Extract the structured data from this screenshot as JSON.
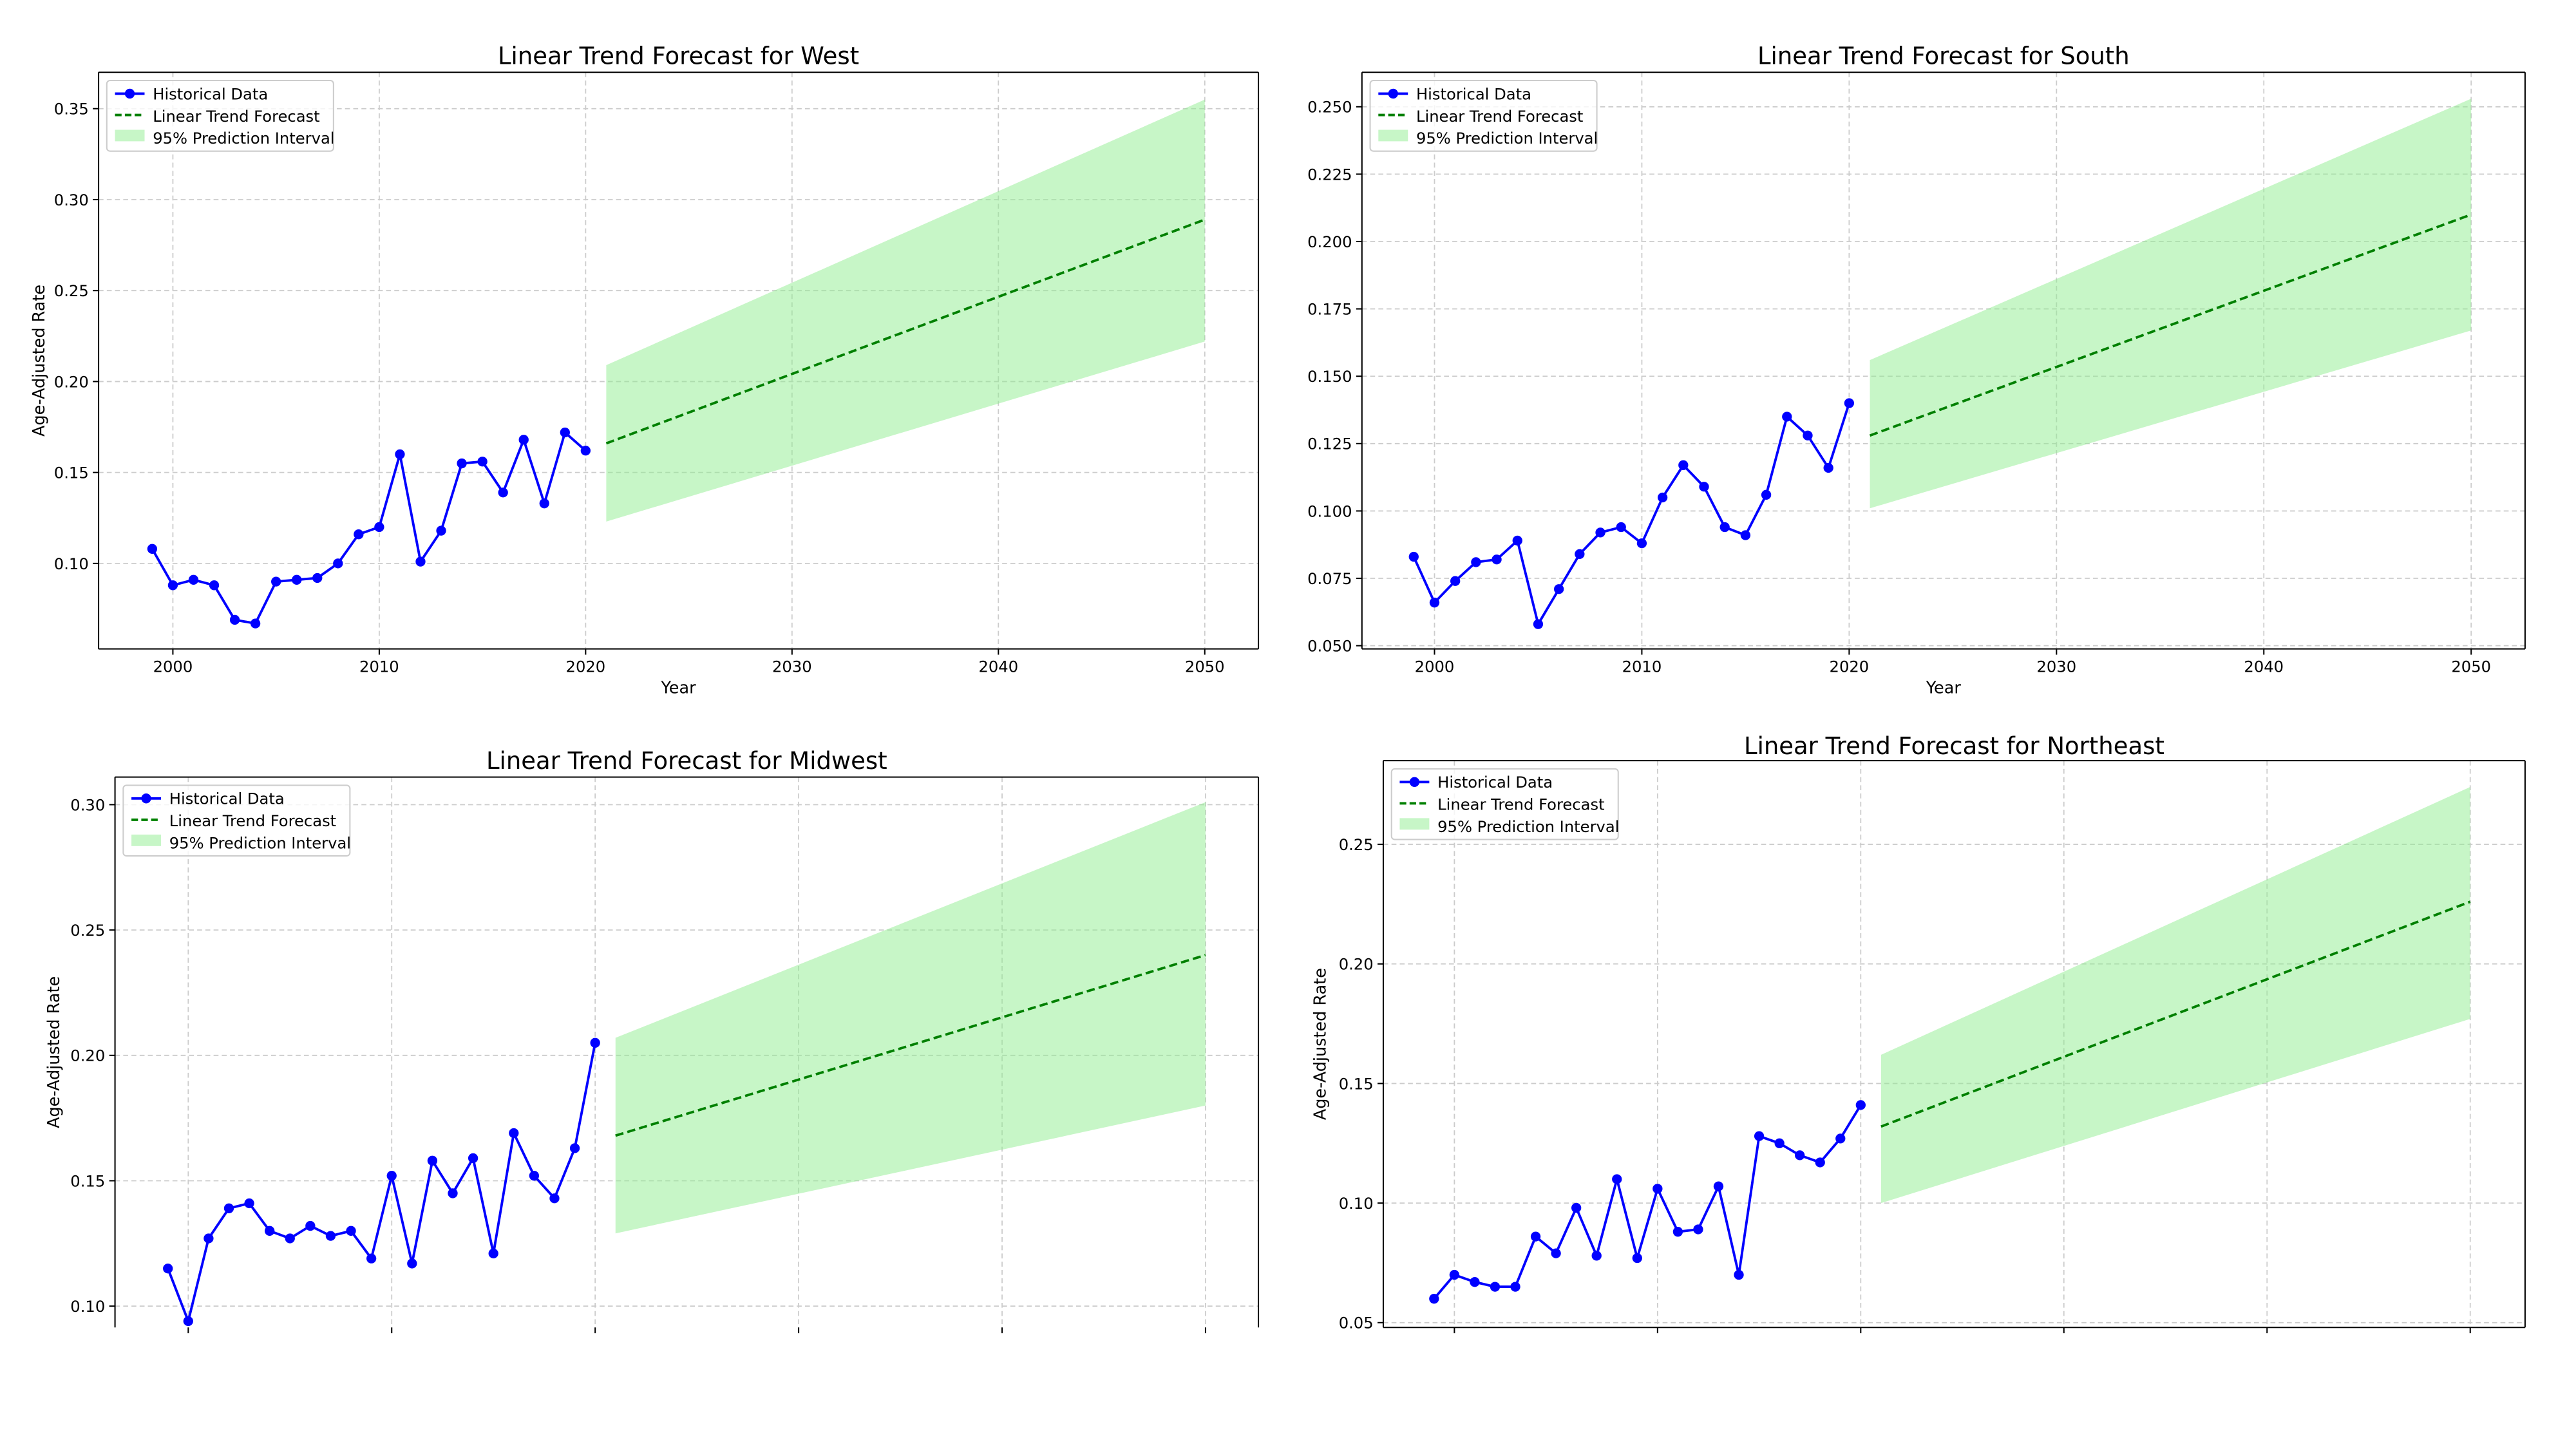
{
  "colors": {
    "historical": "#0000ff",
    "forecast": "#008000",
    "interval": "#90ee90",
    "grid": "#cccccc"
  },
  "chart_data": [
    {
      "type": "line",
      "title": "Linear Trend Forecast for West",
      "xlabel": "Year",
      "ylabel": "Age-Adjusted Rate",
      "xlim": [
        1996.4,
        2052.6
      ],
      "ylim": [
        0.053,
        0.37
      ],
      "xticks": [
        2000,
        2010,
        2020,
        2030,
        2040,
        2050
      ],
      "show_xtick_labels": true,
      "yticks": [
        0.1,
        0.15,
        0.2,
        0.25,
        0.3,
        0.35
      ],
      "ytick_labels": [
        "0.10",
        "0.15",
        "0.20",
        "0.25",
        "0.30",
        "0.35"
      ],
      "grid": true,
      "legend": "top-left",
      "legend_entries": [
        "Historical Data",
        "Linear Trend Forecast",
        "95% Prediction Interval"
      ],
      "historical": {
        "x_start": 1999,
        "values": [
          0.108,
          0.088,
          0.091,
          0.088,
          0.069,
          0.067,
          0.09,
          0.091,
          0.092,
          0.1,
          0.116,
          0.12,
          0.16,
          0.101,
          0.118,
          0.155,
          0.156,
          0.139,
          0.168,
          0.133,
          0.172,
          0.162
        ]
      },
      "forecast": {
        "x": [
          2021,
          2050
        ],
        "values": [
          0.166,
          0.289
        ],
        "lower": [
          0.123,
          0.222
        ],
        "upper": [
          0.209,
          0.355
        ]
      }
    },
    {
      "type": "line",
      "title": "Linear Trend Forecast for South",
      "xlabel": "Year",
      "ylabel": "",
      "xlim": [
        1996.5,
        2052.6
      ],
      "ylim": [
        0.0488,
        0.2628
      ],
      "xticks": [
        2000,
        2010,
        2020,
        2030,
        2040,
        2050
      ],
      "show_xtick_labels": true,
      "yticks": [
        0.05,
        0.075,
        0.1,
        0.125,
        0.15,
        0.175,
        0.2,
        0.225,
        0.25
      ],
      "ytick_labels": [
        "0.050",
        "0.075",
        "0.100",
        "0.125",
        "0.150",
        "0.175",
        "0.200",
        "0.225",
        "0.250"
      ],
      "grid": true,
      "legend": "top-left",
      "legend_entries": [
        "Historical Data",
        "Linear Trend Forecast",
        "95% Prediction Interval"
      ],
      "historical": {
        "x_start": 1999,
        "values": [
          0.083,
          0.066,
          0.074,
          0.081,
          0.082,
          0.089,
          0.058,
          0.071,
          0.084,
          0.092,
          0.094,
          0.088,
          0.105,
          0.117,
          0.109,
          0.094,
          0.091,
          0.106,
          0.135,
          0.128,
          0.116,
          0.14
        ]
      },
      "forecast": {
        "x": [
          2021,
          2050
        ],
        "values": [
          0.128,
          0.21
        ],
        "lower": [
          0.101,
          0.167
        ],
        "upper": [
          0.156,
          0.253
        ]
      }
    },
    {
      "type": "line",
      "title": "Linear Trend Forecast for Midwest",
      "xlabel": "",
      "ylabel": "Age-Adjusted Rate",
      "xlim": [
        1996.4,
        2052.6
      ],
      "ylim": [
        0.0915,
        0.311
      ],
      "xticks": [
        2000,
        2010,
        2020,
        2030,
        2040,
        2050
      ],
      "show_xtick_labels": false,
      "yticks": [
        0.1,
        0.15,
        0.2,
        0.25,
        0.3
      ],
      "ytick_labels": [
        "0.10",
        "0.15",
        "0.20",
        "0.25",
        "0.30"
      ],
      "grid": true,
      "legend": "top-left",
      "legend_entries": [
        "Historical Data",
        "Linear Trend Forecast",
        "95% Prediction Interval"
      ],
      "historical": {
        "x_start": 1999,
        "values": [
          0.115,
          0.094,
          0.127,
          0.139,
          0.141,
          0.13,
          0.127,
          0.132,
          0.128,
          0.13,
          0.119,
          0.152,
          0.117,
          0.158,
          0.145,
          0.159,
          0.121,
          0.169,
          0.152,
          0.143,
          0.163,
          0.205
        ]
      },
      "forecast": {
        "x": [
          2021,
          2050
        ],
        "values": [
          0.168,
          0.24
        ],
        "lower": [
          0.129,
          0.18
        ],
        "upper": [
          0.207,
          0.301
        ]
      }
    },
    {
      "type": "line",
      "title": "Linear Trend Forecast for Northeast",
      "xlabel": "",
      "ylabel": "Age-Adjusted Rate",
      "xlim": [
        1996.5,
        2052.7
      ],
      "ylim": [
        0.048,
        0.285
      ],
      "xticks": [
        2000,
        2010,
        2020,
        2030,
        2040,
        2050
      ],
      "show_xtick_labels": false,
      "yticks": [
        0.05,
        0.1,
        0.15,
        0.2,
        0.25
      ],
      "ytick_labels": [
        "0.05",
        "0.10",
        "0.15",
        "0.20",
        "0.25"
      ],
      "grid": true,
      "legend": "top-left",
      "legend_entries": [
        "Historical Data",
        "Linear Trend Forecast",
        "95% Prediction Interval"
      ],
      "historical": {
        "x_start": 1999,
        "values": [
          0.06,
          0.07,
          0.067,
          0.065,
          0.065,
          0.086,
          0.079,
          0.098,
          0.078,
          0.11,
          0.077,
          0.106,
          0.088,
          0.089,
          0.107,
          0.07,
          0.128,
          0.125,
          0.12,
          0.117,
          0.127,
          0.141
        ]
      },
      "forecast": {
        "x": [
          2021,
          2050
        ],
        "values": [
          0.132,
          0.226
        ],
        "lower": [
          0.1,
          0.177
        ],
        "upper": [
          0.162,
          0.274
        ]
      }
    }
  ]
}
